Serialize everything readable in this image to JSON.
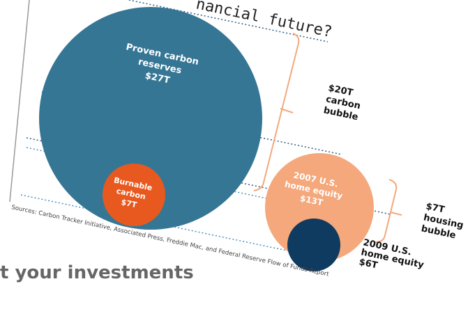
{
  "headline": "nancial future?",
  "bubbles": [
    {
      "lines": [
        "Proven carbon",
        "reserves"
      ],
      "value": "$27T"
    },
    {
      "lines": [
        "Burnable",
        "carbon"
      ],
      "value": "$7T"
    },
    {
      "lines": [
        "2007 U.S.",
        "home equity"
      ],
      "value": "$13T"
    },
    {
      "lines": [
        "2009 U.S.",
        "home equity"
      ],
      "value": "$6T"
    }
  ],
  "brackets": [
    {
      "lines": [
        "$20T",
        "carbon",
        "bubble"
      ]
    },
    {
      "lines": [
        "$7T",
        "housing",
        "bubble"
      ]
    }
  ],
  "sources": "Sources: Carbon Tracker Initiative, Associated Press, Freddie Mac, and Federal Reserve Flow of Funds Report",
  "footer": "t your investments"
}
